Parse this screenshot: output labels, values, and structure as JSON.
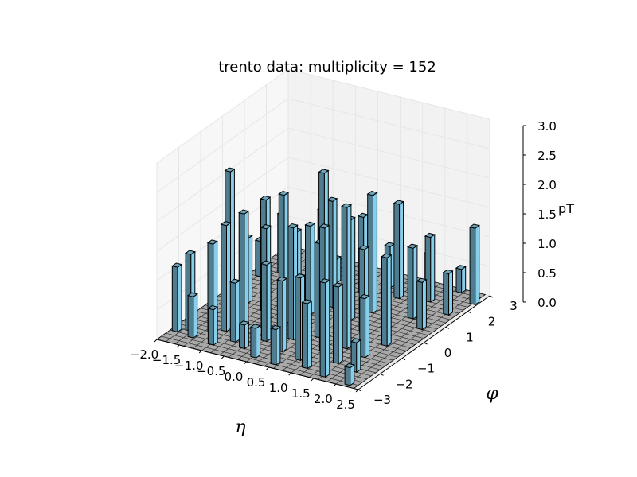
{
  "chart_data": {
    "type": "bar3d",
    "title": "trento data: multiplicity = 152",
    "xlabel": "η",
    "ylabel": "φ",
    "zlabel": "pT",
    "xlim": [
      -2.0,
      2.5
    ],
    "ylim": [
      -3,
      3
    ],
    "zlim": [
      0.0,
      3.0
    ],
    "x_ticks": [
      "−2.0",
      "−1.5",
      "−1.0",
      "−0.5",
      "0.0",
      "0.5",
      "1.0",
      "1.5",
      "2.0",
      "2.5"
    ],
    "y_ticks": [
      "−3",
      "−2",
      "−1",
      "0",
      "1",
      "2",
      "3"
    ],
    "z_ticks": [
      "0.0",
      "0.5",
      "1.0",
      "1.5",
      "2.0",
      "2.5",
      "3.0"
    ],
    "grid": true,
    "colors": {
      "bar_face": "#87ceeb",
      "bar_edge": "#000000",
      "floor": "#a9a9a9",
      "pane": "#f2f2f2",
      "grid": "#e6e6e6"
    },
    "bars": [
      {
        "x": -1.95,
        "y": -2.4,
        "z": 1.1
      },
      {
        "x": -1.75,
        "y": -2.2,
        "z": 1.3
      },
      {
        "x": -1.55,
        "y": -2.5,
        "z": 0.7
      },
      {
        "x": -1.35,
        "y": -2.0,
        "z": 1.5
      },
      {
        "x": -1.15,
        "y": -1.8,
        "z": 1.8
      },
      {
        "x": -1.05,
        "y": -2.6,
        "z": 0.6
      },
      {
        "x": -0.85,
        "y": -1.6,
        "z": 2.0
      },
      {
        "x": -0.75,
        "y": -2.2,
        "z": 1.0
      },
      {
        "x": -0.55,
        "y": -1.2,
        "z": 1.7
      },
      {
        "x": -0.45,
        "y": -2.4,
        "z": 0.4
      },
      {
        "x": -0.25,
        "y": -1.8,
        "z": 1.3
      },
      {
        "x": -0.05,
        "y": -2.7,
        "z": 0.5
      },
      {
        "x": 0.15,
        "y": -1.4,
        "z": 1.9
      },
      {
        "x": 0.25,
        "y": -2.1,
        "z": 1.2
      },
      {
        "x": 0.45,
        "y": -2.8,
        "z": 0.6
      },
      {
        "x": 0.55,
        "y": -1.0,
        "z": 1.6
      },
      {
        "x": 0.75,
        "y": -2.3,
        "z": 1.4
      },
      {
        "x": 0.95,
        "y": -1.6,
        "z": 2.1
      },
      {
        "x": 1.05,
        "y": -2.6,
        "z": 1.1
      },
      {
        "x": 1.25,
        "y": -1.2,
        "z": 2.4
      },
      {
        "x": 1.45,
        "y": -2.0,
        "z": 1.3
      },
      {
        "x": 1.55,
        "y": -2.8,
        "z": 1.6
      },
      {
        "x": 1.75,
        "y": -1.4,
        "z": 1.0
      },
      {
        "x": 1.95,
        "y": -2.2,
        "z": 0.5
      },
      {
        "x": 2.15,
        "y": -2.9,
        "z": 0.3
      },
      {
        "x": -1.65,
        "y": -0.6,
        "z": 2.3
      },
      {
        "x": -1.45,
        "y": -0.2,
        "z": 1.1
      },
      {
        "x": -1.25,
        "y": 0.2,
        "z": 1.6
      },
      {
        "x": -0.95,
        "y": -0.4,
        "z": 1.9
      },
      {
        "x": -0.65,
        "y": 0.4,
        "z": 1.2
      },
      {
        "x": -0.35,
        "y": -0.8,
        "z": 2.2
      },
      {
        "x": -0.15,
        "y": 0.0,
        "z": 1.5
      },
      {
        "x": 0.05,
        "y": 0.6,
        "z": 1.8
      },
      {
        "x": 0.35,
        "y": -0.4,
        "z": 2.6
      },
      {
        "x": 0.65,
        "y": 0.2,
        "z": 1.7
      },
      {
        "x": 0.85,
        "y": 0.8,
        "z": 2.0
      },
      {
        "x": 1.15,
        "y": -0.2,
        "z": 1.4
      },
      {
        "x": 1.35,
        "y": 0.4,
        "z": 0.9
      },
      {
        "x": 1.65,
        "y": 1.0,
        "z": 1.2
      },
      {
        "x": 1.85,
        "y": -0.6,
        "z": 1.5
      },
      {
        "x": 2.05,
        "y": 0.6,
        "z": 0.8
      },
      {
        "x": -1.85,
        "y": 1.2,
        "z": 0.6
      },
      {
        "x": -1.55,
        "y": 1.6,
        "z": 1.0
      },
      {
        "x": -1.15,
        "y": 1.4,
        "z": 0.5
      },
      {
        "x": -0.85,
        "y": 2.0,
        "z": 1.1
      },
      {
        "x": -0.45,
        "y": 1.8,
        "z": 0.4
      },
      {
        "x": -0.15,
        "y": 2.4,
        "z": 0.9
      },
      {
        "x": 0.25,
        "y": 1.6,
        "z": 1.3
      },
      {
        "x": 0.55,
        "y": 2.2,
        "z": 0.7
      },
      {
        "x": 0.95,
        "y": 1.8,
        "z": 1.6
      },
      {
        "x": 1.25,
        "y": 2.6,
        "z": 0.6
      },
      {
        "x": 1.55,
        "y": 2.0,
        "z": 1.1
      },
      {
        "x": 1.85,
        "y": 2.8,
        "z": 0.4
      },
      {
        "x": 2.15,
        "y": 1.6,
        "z": 0.7
      },
      {
        "x": 2.35,
        "y": 2.4,
        "z": 1.3
      }
    ]
  }
}
